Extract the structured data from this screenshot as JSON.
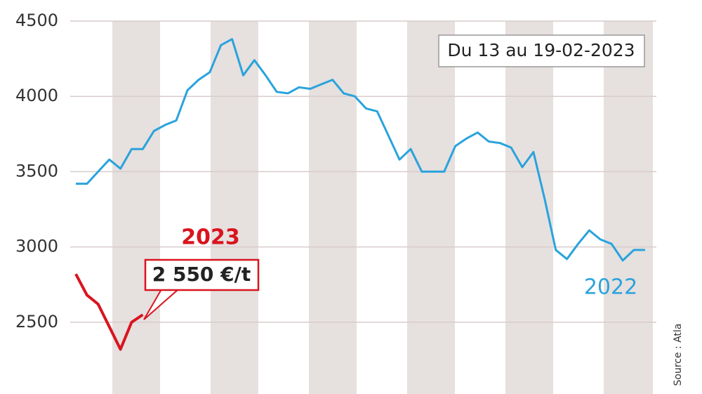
{
  "chart_data": {
    "type": "line",
    "subtitle": "Du 13 au 19-02-2023",
    "source": "Source : Atla",
    "categories": [
      null,
      null,
      null,
      null,
      null,
      null,
      null,
      null,
      null,
      null,
      null,
      null,
      null,
      null,
      null,
      null,
      null,
      null,
      null,
      null,
      null,
      null,
      null,
      null,
      null,
      null,
      null,
      null,
      null,
      null,
      null,
      null,
      null,
      null,
      null,
      null,
      null,
      null,
      null,
      null,
      null,
      null,
      null,
      null,
      null,
      null,
      null,
      null,
      null,
      null,
      null,
      null
    ],
    "series": [
      {
        "name": "2022",
        "color": "#29a3dc",
        "values": [
          3420,
          3420,
          3500,
          3580,
          3520,
          3650,
          3650,
          3770,
          3810,
          3840,
          4040,
          4110,
          4160,
          4340,
          4380,
          4140,
          4240,
          4140,
          4030,
          4020,
          4060,
          4050,
          4080,
          4110,
          4020,
          4000,
          3920,
          3900,
          3740,
          3580,
          3650,
          3500,
          3500,
          3500,
          3670,
          3720,
          3760,
          3700,
          3690,
          3660,
          3530,
          3630,
          3320,
          2980,
          2920,
          3020,
          3110,
          3050,
          3020,
          2910,
          2980,
          2980
        ]
      },
      {
        "name": "2023",
        "color": "#d9141e",
        "values": [
          2820,
          2680,
          2620,
          2470,
          2320,
          2500,
          2550,
          null,
          null,
          null,
          null,
          null,
          null,
          null,
          null,
          null,
          null,
          null,
          null,
          null,
          null,
          null,
          null,
          null,
          null,
          null,
          null,
          null,
          null,
          null,
          null,
          null,
          null,
          null,
          null,
          null,
          null,
          null,
          null,
          null,
          null,
          null,
          null,
          null,
          null,
          null,
          null,
          null,
          null,
          null,
          null,
          null
        ],
        "value_labels": [
          null,
          null,
          null,
          null,
          null,
          null,
          "2 550 €/t",
          null,
          null,
          null,
          null,
          null,
          null,
          null,
          null,
          null,
          null,
          null,
          null,
          null,
          null,
          null,
          null,
          null,
          null,
          null,
          null,
          null,
          null,
          null,
          null,
          null,
          null,
          null,
          null,
          null,
          null,
          null,
          null,
          null,
          null,
          null,
          null,
          null,
          null,
          null,
          null,
          null,
          null,
          null,
          null,
          null
        ]
      }
    ],
    "ylim": [
      2000,
      4500
    ],
    "yticks": [
      2500,
      3000,
      3500,
      4000,
      4500
    ],
    "grid": true
  }
}
